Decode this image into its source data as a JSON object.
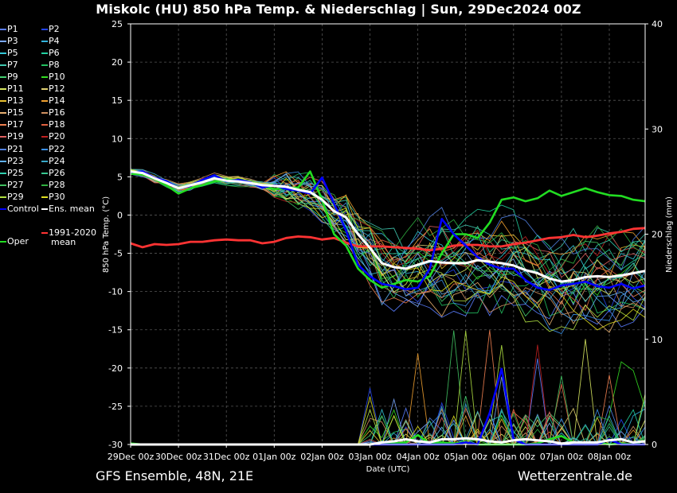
{
  "title": "Miskolc  (HU)  850 hPa Temp. & Niederschlag | Sun, 29Dec2024 00Z",
  "footer": {
    "left": "GFS Ensemble, 48N, 21E",
    "right": "Wetterzentrale.de"
  },
  "chart_data": {
    "type": "line",
    "title": "Miskolc  (HU)  850 hPa Temp. & Niederschlag | Sun, 29Dec2024 00Z",
    "xlabel": "Date (UTC)",
    "ylabel_left": "850 hPa Temp. (°C)",
    "ylabel_right": "Niederschlag (mm)",
    "x_ticks": [
      "29Dec 00z",
      "30Dec 00z",
      "31Dec 00z",
      "01Jan 00z",
      "02Jan 00z",
      "03Jan 00z",
      "04Jan 00z",
      "05Jan 00z",
      "06Jan 00z",
      "07Jan 00z",
      "08Jan 00z"
    ],
    "ylim_left": [
      -30,
      25
    ],
    "y_ticks_left": [
      25,
      20,
      15,
      10,
      5,
      0,
      -5,
      -10,
      -15,
      -20,
      -25,
      -30
    ],
    "ylim_right": [
      0,
      40
    ],
    "y_ticks_right": [
      40,
      30,
      20,
      10,
      0
    ],
    "x_days": [
      0,
      0.25,
      0.5,
      0.75,
      1,
      1.25,
      1.5,
      1.75,
      2,
      2.25,
      2.5,
      2.75,
      3,
      3.25,
      3.5,
      3.75,
      4,
      4.25,
      4.5,
      4.75,
      5,
      5.25,
      5.5,
      5.75,
      6,
      6.25,
      6.5,
      6.75,
      7,
      7.25,
      7.5,
      7.75,
      8,
      8.25,
      8.5,
      8.75,
      9,
      9.25,
      9.5,
      9.75,
      10,
      10.25,
      10.5,
      10.75
    ],
    "grid": true,
    "legend_position": "left",
    "legend": [
      {
        "label": "P1",
        "color": "#5a7dff"
      },
      {
        "label": "P2",
        "color": "#2244ee"
      },
      {
        "label": "P3",
        "color": "#7aa8ff"
      },
      {
        "label": "P4",
        "color": "#33b4dd"
      },
      {
        "label": "P5",
        "color": "#33c8d8"
      },
      {
        "label": "P6",
        "color": "#22d0a0"
      },
      {
        "label": "P7",
        "color": "#40c8b0"
      },
      {
        "label": "P8",
        "color": "#22c060"
      },
      {
        "label": "P9",
        "color": "#44d070"
      },
      {
        "label": "P10",
        "color": "#33dd22"
      },
      {
        "label": "P11",
        "color": "#d8e860"
      },
      {
        "label": "P12",
        "color": "#e0d070"
      },
      {
        "label": "P13",
        "color": "#e8c030"
      },
      {
        "label": "P14",
        "color": "#f0a030"
      },
      {
        "label": "P15",
        "color": "#e8b070"
      },
      {
        "label": "P16",
        "color": "#d09060"
      },
      {
        "label": "P17",
        "color": "#f08050"
      },
      {
        "label": "P18",
        "color": "#e06040"
      },
      {
        "label": "P19",
        "color": "#e06060"
      },
      {
        "label": "P20",
        "color": "#c02020"
      },
      {
        "label": "P21",
        "color": "#5080e0"
      },
      {
        "label": "P22",
        "color": "#3a90e8"
      },
      {
        "label": "P23",
        "color": "#60b0f0"
      },
      {
        "label": "P24",
        "color": "#38a8c8"
      },
      {
        "label": "P25",
        "color": "#30d0b0"
      },
      {
        "label": "P26",
        "color": "#38c890"
      },
      {
        "label": "P27",
        "color": "#40c060"
      },
      {
        "label": "P28",
        "color": "#30b040"
      },
      {
        "label": "P29",
        "color": "#b0e040"
      },
      {
        "label": "P30",
        "color": "#e0e020"
      },
      {
        "label": "Control",
        "color": "#0000ff"
      },
      {
        "label": "Ens. mean",
        "color": "#ffffff"
      },
      {
        "label": "1991-2020",
        "label2": "mean",
        "color": "#ff3333"
      },
      {
        "label": "Oper",
        "color": "#22dd22"
      }
    ],
    "series": [
      {
        "name": "Ens. mean",
        "kind": "temp",
        "color": "#ffffff",
        "values": [
          5.7,
          5.5,
          4.8,
          4.2,
          3.5,
          3.9,
          4.3,
          4.8,
          4.5,
          4.4,
          4.2,
          3.9,
          3.8,
          3.7,
          3.3,
          3.0,
          2.0,
          0.5,
          -0.3,
          -2.5,
          -4.3,
          -6.3,
          -6.8,
          -7.0,
          -6.5,
          -6.0,
          -6.2,
          -6.3,
          -6.3,
          -5.9,
          -6.1,
          -6.3,
          -6.6,
          -7.2,
          -7.6,
          -8.3,
          -8.7,
          -8.5,
          -8.1,
          -8.0,
          -8.1,
          -7.9,
          -7.6,
          -7.3
        ]
      },
      {
        "name": "Control",
        "kind": "temp",
        "color": "#0000ff",
        "values": [
          5.6,
          5.7,
          4.9,
          4.4,
          3.5,
          3.8,
          4.6,
          5.2,
          4.4,
          4.6,
          4.3,
          3.6,
          3.9,
          3.4,
          3.2,
          2.8,
          4.9,
          1.5,
          -2.0,
          -6.5,
          -8.0,
          -9.0,
          -9.3,
          -9.7,
          -9.5,
          -7.0,
          -0.5,
          -2.5,
          -4.0,
          -5.5,
          -6.5,
          -7.0,
          -7.0,
          -8.5,
          -9.5,
          -9.8,
          -9.2,
          -9.0,
          -8.7,
          -9.3,
          -9.5,
          -9.0,
          -9.6,
          -9.2
        ]
      },
      {
        "name": "Oper",
        "kind": "temp",
        "color": "#22dd22",
        "values": [
          5.4,
          5.3,
          4.7,
          3.9,
          2.8,
          3.5,
          3.9,
          4.4,
          4.6,
          4.5,
          4.3,
          3.8,
          3.4,
          3.5,
          3.6,
          5.7,
          2.0,
          -2.5,
          -4.0,
          -7.0,
          -8.5,
          -9.5,
          -9.0,
          -8.5,
          -8.7,
          -8.0,
          -5.0,
          -2.5,
          -2.5,
          -3.0,
          -1.0,
          2.0,
          2.3,
          1.8,
          2.2,
          3.2,
          2.5,
          3.0,
          3.5,
          3.0,
          2.6,
          2.5,
          2.0,
          1.8
        ]
      },
      {
        "name": "1991-2020 mean",
        "kind": "temp",
        "color": "#ff3333",
        "values": [
          -3.7,
          -4.2,
          -3.8,
          -3.9,
          -3.8,
          -3.5,
          -3.5,
          -3.3,
          -3.2,
          -3.3,
          -3.3,
          -3.7,
          -3.5,
          -3.0,
          -2.8,
          -2.9,
          -3.2,
          -3.0,
          -3.6,
          -4.1,
          -4.1,
          -4.1,
          -4.2,
          -4.3,
          -4.4,
          -4.6,
          -4.4,
          -4.0,
          -3.9,
          -3.9,
          -4.1,
          -4.1,
          -3.8,
          -3.6,
          -3.3,
          -3.0,
          -2.9,
          -2.6,
          -2.9,
          -2.7,
          -2.4,
          -2.2,
          -1.8,
          -1.7
        ]
      },
      {
        "name": "Ens. mean",
        "kind": "precip",
        "color": "#ffffff",
        "values": [
          0,
          0,
          0,
          0,
          0,
          0,
          0,
          0,
          0,
          0,
          0,
          0,
          0,
          0,
          0,
          0,
          0,
          0,
          0,
          0,
          0,
          0.2,
          0.3,
          0.5,
          0.3,
          0.2,
          0.5,
          0.5,
          0.6,
          0.5,
          0.3,
          0.2,
          0.4,
          0.5,
          0.4,
          0.3,
          0.1,
          0.2,
          0.2,
          0.2,
          0.4,
          0.5,
          0.2,
          0.3
        ]
      },
      {
        "name": "Control",
        "kind": "precip",
        "color": "#0000ff",
        "values": [
          0,
          0,
          0,
          0,
          0,
          0,
          0,
          0,
          0,
          0,
          0,
          0,
          0,
          0,
          0,
          0,
          0,
          0,
          0,
          0,
          0,
          0,
          0,
          0,
          0,
          0,
          0,
          0,
          0.2,
          0,
          3.0,
          7.2,
          0.5,
          0,
          0,
          0,
          0,
          0,
          0,
          0,
          0.5,
          0,
          0,
          0
        ]
      },
      {
        "name": "Oper",
        "kind": "precip",
        "color": "#22dd22",
        "values": [
          0.1,
          0,
          0,
          0,
          0,
          0,
          0,
          0,
          0,
          0,
          0,
          0,
          0,
          0,
          0,
          0,
          0,
          0,
          0,
          0,
          0,
          0.1,
          0.1,
          0.2,
          0.9,
          0.1,
          0.2,
          0.1,
          0.2,
          0,
          0,
          0,
          0,
          0,
          0.1,
          0.5,
          0.8,
          0.2,
          0,
          0.2,
          0,
          0.1,
          0,
          0.4
        ]
      }
    ]
  }
}
